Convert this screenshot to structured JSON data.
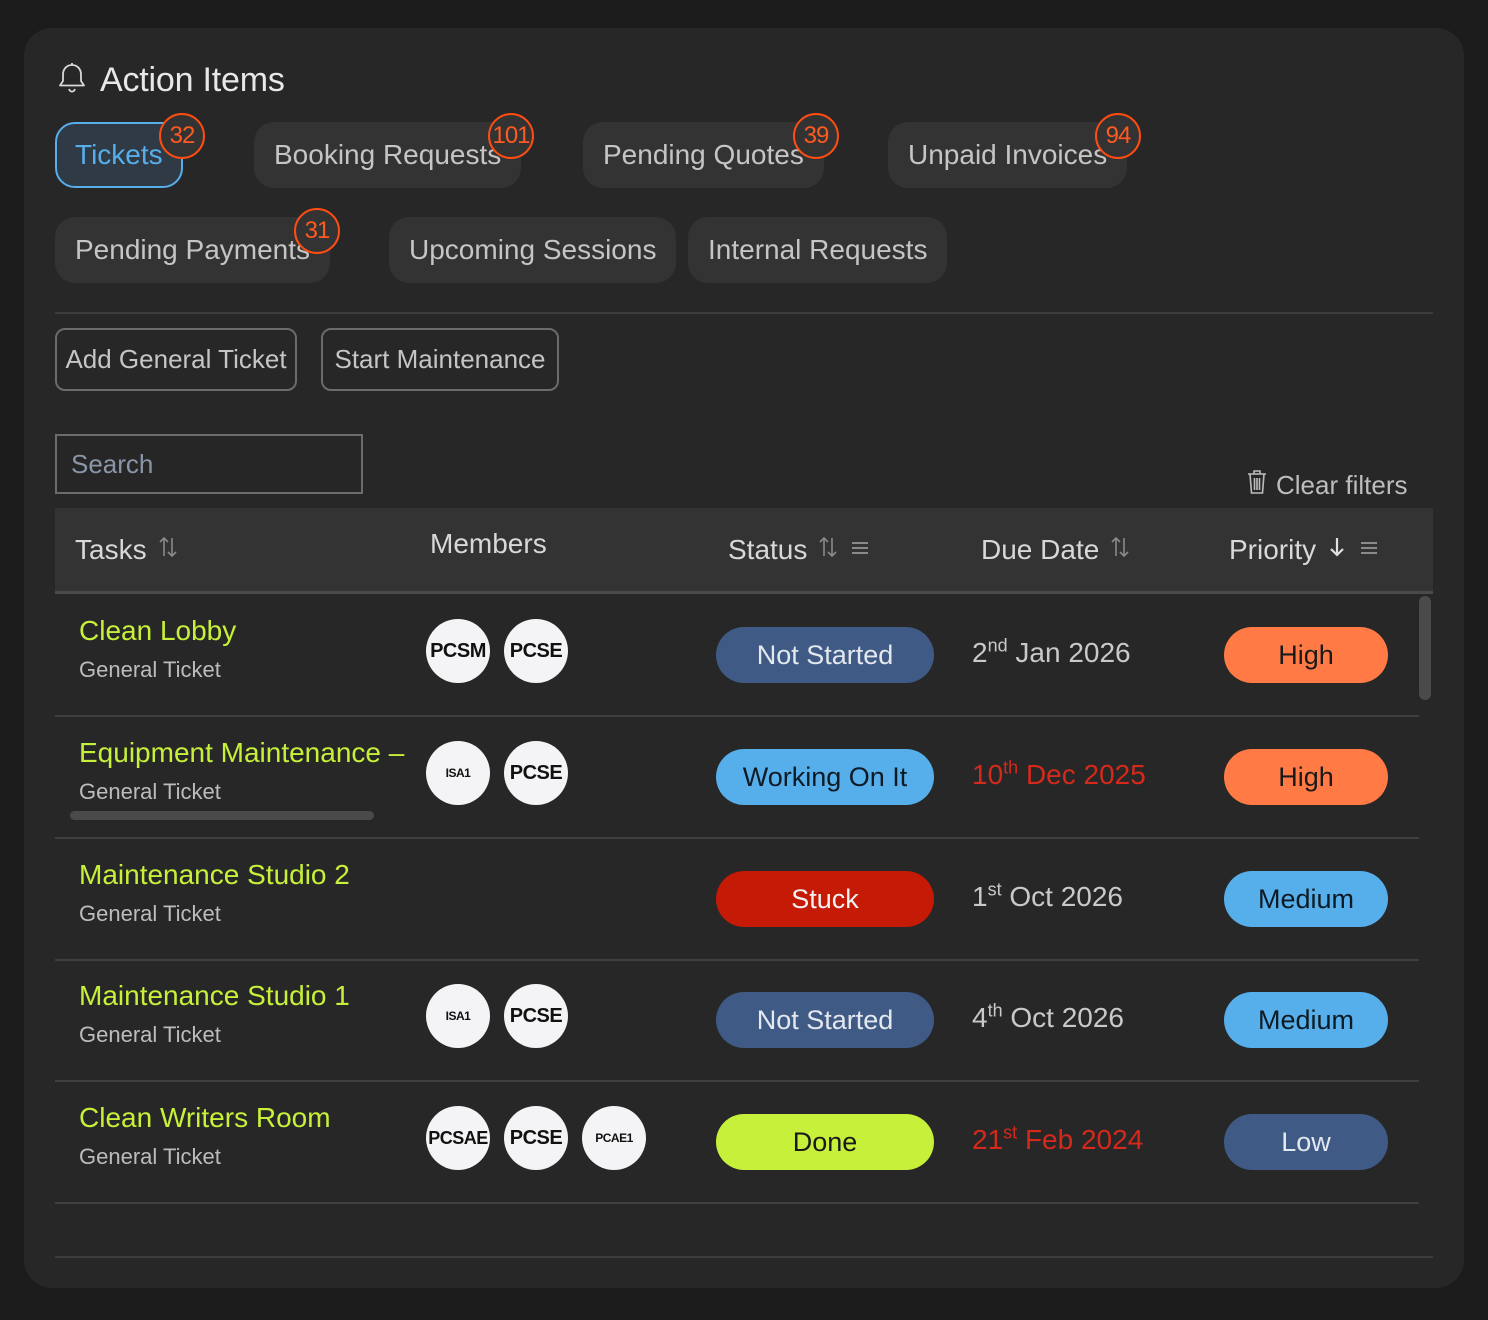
{
  "header": {
    "title": "Action Items",
    "icon": "bell-icon"
  },
  "tabs": [
    {
      "label": "Tickets",
      "badge": "32",
      "active": true
    },
    {
      "label": "Booking Requests",
      "badge": "101"
    },
    {
      "label": "Pending Quotes",
      "badge": "39"
    },
    {
      "label": "Unpaid Invoices",
      "badge": "94"
    },
    {
      "label": "Pending Payments",
      "badge": "31"
    },
    {
      "label": "Upcoming Sessions"
    },
    {
      "label": "Internal Requests"
    }
  ],
  "actions": {
    "add_ticket": "Add General Ticket",
    "start_maintenance": "Start Maintenance"
  },
  "search": {
    "placeholder": "Search",
    "value": ""
  },
  "clear_filters": "Clear filters",
  "table": {
    "columns": [
      {
        "label": "Tasks",
        "sort": "both"
      },
      {
        "label": "Members"
      },
      {
        "label": "Status",
        "sort": "both",
        "filter": true
      },
      {
        "label": "Due Date",
        "sort": "both"
      },
      {
        "label": "Priority",
        "sort": "desc",
        "filter": true
      }
    ],
    "rows": [
      {
        "task": "Clean Lobby",
        "type": "General Ticket",
        "members": [
          "PCSM",
          "PCSE"
        ],
        "status": "Not Started",
        "due_day": "2",
        "due_suffix": "nd",
        "due_rest": "Jan 2026",
        "overdue": false,
        "priority": "High"
      },
      {
        "task": "Equipment Maintenance – ",
        "type": "General Ticket",
        "members": [
          "ISA1",
          "PCSE"
        ],
        "status": "Working On It",
        "due_day": "10",
        "due_suffix": "th",
        "due_rest": "Dec 2025",
        "overdue": true,
        "priority": "High"
      },
      {
        "task": "Maintenance Studio 2",
        "type": "General Ticket",
        "members": [],
        "status": "Stuck",
        "due_day": "1",
        "due_suffix": "st",
        "due_rest": "Oct 2026",
        "overdue": false,
        "priority": "Medium"
      },
      {
        "task": "Maintenance Studio 1",
        "type": "General Ticket",
        "members": [
          "ISA1",
          "PCSE"
        ],
        "status": "Not Started",
        "due_day": "4",
        "due_suffix": "th",
        "due_rest": "Oct 2026",
        "overdue": false,
        "priority": "Medium"
      },
      {
        "task": "Clean Writers Room",
        "type": "General Ticket",
        "members": [
          "PCSAE",
          "PCSE",
          "PCAE1"
        ],
        "status": "Done",
        "due_day": "21",
        "due_suffix": "st",
        "due_rest": "Feb 2024",
        "overdue": true,
        "priority": "Low"
      }
    ]
  },
  "colors": {
    "accent": "#56aeea",
    "badge": "#ff4d12",
    "task_name": "#c6f03a",
    "overdue": "#d4291b",
    "status": {
      "Not Started": "#3f5a85",
      "Working On It": "#56aeea",
      "Stuck": "#c41a06",
      "Done": "#c6f03a"
    },
    "priority": {
      "High": "#ff7a45",
      "Medium": "#56aeea",
      "Low": "#3f5a85"
    }
  }
}
